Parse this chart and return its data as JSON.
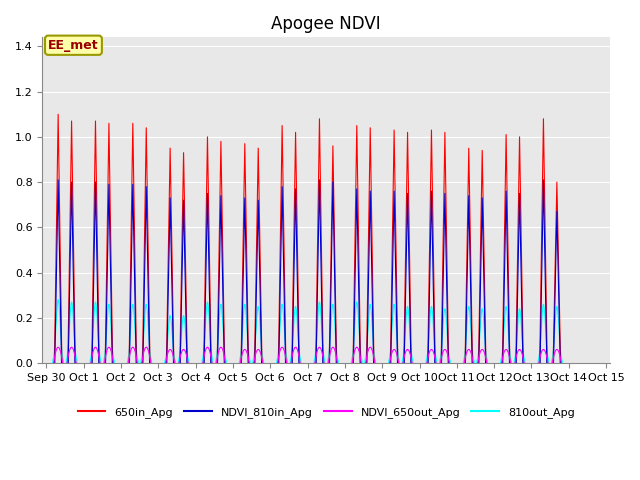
{
  "title": "Apogee NDVI",
  "annotation": "EE_met",
  "ylim": [
    0.0,
    1.44
  ],
  "yticks": [
    0.0,
    0.2,
    0.4,
    0.6,
    0.8,
    1.0,
    1.2,
    1.4
  ],
  "xtick_labels": [
    "Sep 30",
    "Oct 1",
    "Oct 2",
    "Oct 3",
    "Oct 4",
    "Oct 5",
    "Oct 6",
    "Oct 7",
    "Oct 8",
    "Oct 9",
    "Oct 10",
    "Oct 11",
    "Oct 12",
    "Oct 13",
    "Oct 14",
    "Oct 15"
  ],
  "colors": {
    "650in_Apg": "#ff0000",
    "NDVI_810in_Apg": "#0000cc",
    "NDVI_650out_Apg": "#ff00ff",
    "810out_Apg": "#00ffff"
  },
  "figure_bg": "#ffffff",
  "plot_bg": "#e8e8e8",
  "grid_color": "#d0d0d0",
  "num_days": 14,
  "peaks_650in": [
    1.1,
    1.07,
    1.06,
    0.95,
    1.0,
    0.97,
    1.05,
    1.08,
    1.05,
    1.03,
    1.03,
    0.95,
    1.01,
    1.08
  ],
  "peaks2_650in": [
    1.07,
    1.06,
    1.04,
    0.93,
    0.98,
    0.95,
    1.02,
    0.96,
    1.04,
    1.02,
    1.02,
    0.94,
    1.0,
    0.8
  ],
  "peaks_810in": [
    0.81,
    0.8,
    0.79,
    0.73,
    0.75,
    0.73,
    0.78,
    0.81,
    0.77,
    0.76,
    0.76,
    0.74,
    0.76,
    0.81
  ],
  "peaks2_810in": [
    0.8,
    0.79,
    0.78,
    0.72,
    0.74,
    0.72,
    0.77,
    0.8,
    0.76,
    0.75,
    0.75,
    0.73,
    0.75,
    0.67
  ],
  "peaks_650out": [
    0.07,
    0.07,
    0.07,
    0.06,
    0.07,
    0.06,
    0.07,
    0.07,
    0.07,
    0.06,
    0.06,
    0.06,
    0.06,
    0.06
  ],
  "peaks2_650out": [
    0.07,
    0.07,
    0.07,
    0.06,
    0.07,
    0.06,
    0.07,
    0.07,
    0.07,
    0.06,
    0.06,
    0.06,
    0.06,
    0.06
  ],
  "peaks_810out": [
    0.28,
    0.27,
    0.26,
    0.21,
    0.27,
    0.26,
    0.26,
    0.27,
    0.27,
    0.26,
    0.25,
    0.25,
    0.25,
    0.26
  ],
  "peaks2_810out": [
    0.27,
    0.26,
    0.26,
    0.21,
    0.26,
    0.25,
    0.25,
    0.26,
    0.26,
    0.25,
    0.24,
    0.24,
    0.24,
    0.25
  ],
  "annotation_fontsize": 9,
  "title_fontsize": 12,
  "tick_fontsize": 8
}
